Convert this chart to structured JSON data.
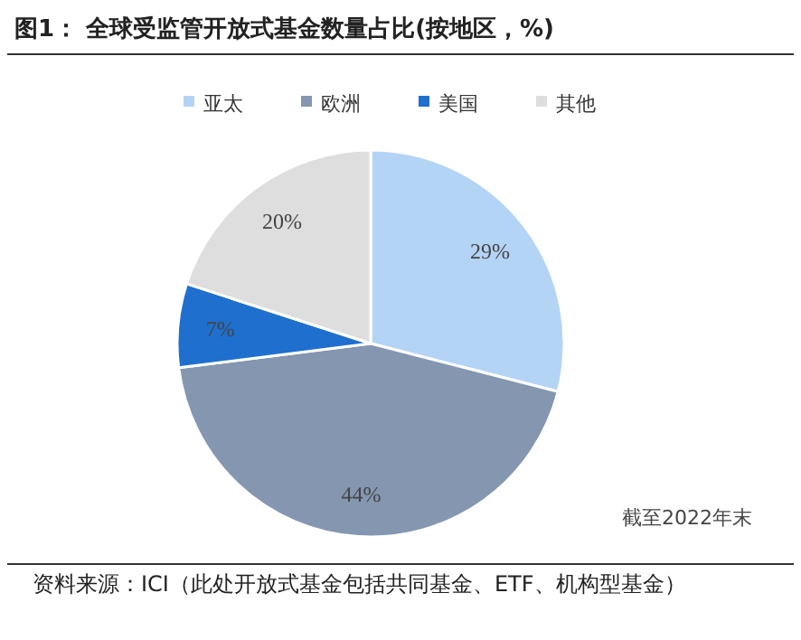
{
  "chart_data": {
    "type": "pie",
    "title": "图1：  全球受监管开放式基金数量占比(按地区，%)",
    "categories": [
      "亚太",
      "欧洲",
      "美国",
      "其他"
    ],
    "values": [
      29,
      44,
      7,
      20
    ],
    "colors": [
      "#b4d4f6",
      "#8496b0",
      "#1f6fcf",
      "#dedede"
    ],
    "value_labels": [
      "29%",
      "44%",
      "7%",
      "20%"
    ],
    "legend": "top",
    "annotations": [
      "截至2022年末",
      "资料来源：ICI（此处开放式基金包括共同基金、ETF、机构型基金）"
    ]
  }
}
